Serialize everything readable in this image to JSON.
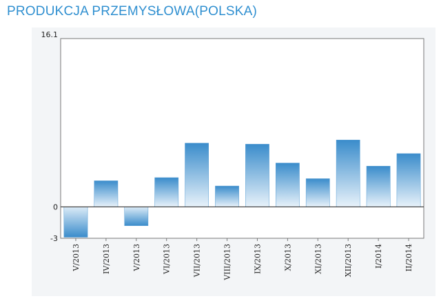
{
  "header": {
    "title": "PRODUKCJA PRZEMYSŁOWA(POLSKA)"
  },
  "chart_data": {
    "type": "bar",
    "title": "PRODUKCJA PRZEMYSŁOWA(POLSKA)",
    "categories": [
      "V/2013",
      "IV/2013",
      "V/2013",
      "VI/2013",
      "VII/2013",
      "VIII/2013",
      "IX/2013",
      "X/2013",
      "XI/2013",
      "XII/2013",
      "I/2014",
      "II/2014"
    ],
    "values": [
      -2.9,
      2.5,
      -1.8,
      2.8,
      6.1,
      2.0,
      6.0,
      4.2,
      2.7,
      6.4,
      3.9,
      5.1
    ],
    "ylim": [
      -3,
      16.1
    ],
    "yticks": [
      "16.1",
      "0",
      "-3"
    ],
    "xlabel": "",
    "ylabel": "",
    "grid": false,
    "bar_color": "#3d8fca"
  }
}
